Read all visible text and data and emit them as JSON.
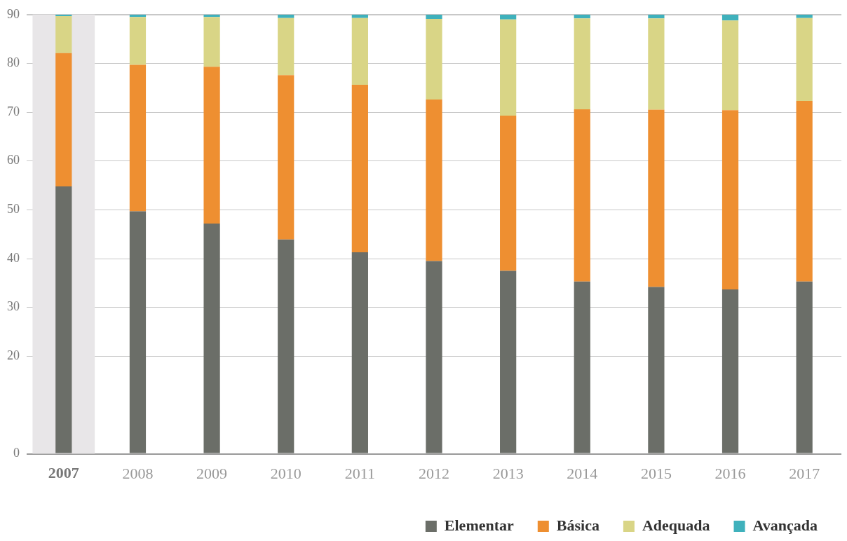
{
  "chart_data": {
    "type": "bar",
    "stacked": true,
    "categories": [
      "2007",
      "2008",
      "2009",
      "2010",
      "2011",
      "2012",
      "2013",
      "2014",
      "2015",
      "2016",
      "2017"
    ],
    "series": [
      {
        "name": "Elementar",
        "color": "#6b6e68",
        "values": [
          54.8,
          49.7,
          47.2,
          43.9,
          41.3,
          39.5,
          37.5,
          35.3,
          34.2,
          33.7,
          35.3
        ]
      },
      {
        "name": "Básica",
        "color": "#ee8f31",
        "values": [
          27.3,
          30.0,
          32.1,
          33.7,
          34.3,
          33.1,
          31.8,
          35.3,
          36.3,
          36.7,
          37.0
        ]
      },
      {
        "name": "Adequada",
        "color": "#d9d586",
        "values": [
          7.6,
          9.8,
          10.2,
          11.7,
          13.7,
          16.5,
          19.7,
          18.6,
          18.7,
          18.4,
          17.0
        ]
      },
      {
        "name": "Avançada",
        "color": "#3fb1bc",
        "values": [
          0.3,
          0.5,
          0.5,
          0.7,
          0.7,
          0.9,
          1.0,
          0.8,
          0.8,
          1.2,
          0.7
        ]
      }
    ],
    "ylim": [
      0,
      90
    ],
    "yticks": [
      0,
      20,
      30,
      40,
      50,
      60,
      70,
      80,
      90
    ],
    "grid": "y",
    "legend": "bottom right",
    "bands": [
      {
        "axis": "x",
        "from": "2007",
        "to": "2007",
        "color": "#e8e6e8"
      }
    ]
  }
}
